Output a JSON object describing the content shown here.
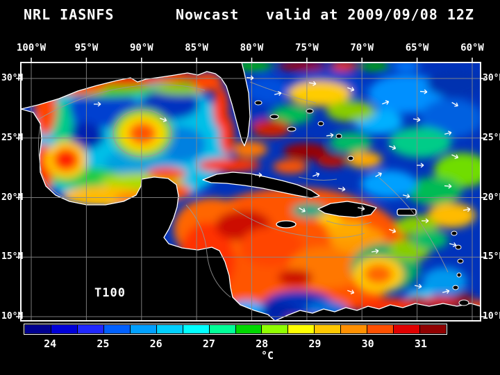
{
  "header": {
    "model": "NRL IASNFS",
    "product": "Nowcast",
    "valid_time": "valid at 2009/09/08 12Z"
  },
  "map": {
    "field_label": "T100",
    "lon_ticks": [
      "100°W",
      "95°W",
      "90°W",
      "85°W",
      "80°W",
      "75°W",
      "70°W",
      "65°W",
      "60°W"
    ],
    "lat_ticks_left": [
      "30°N",
      "25°N",
      "20°N",
      "15°N",
      "10°N"
    ],
    "lat_ticks_right": [
      "30°N",
      "25°N",
      "20°N",
      "15°N",
      "10°N"
    ]
  },
  "colorbar": {
    "unit_label": "°C",
    "tick_labels": [
      "24",
      "25",
      "26",
      "27",
      "28",
      "29",
      "30",
      "31"
    ],
    "segment_colors": [
      "#000090",
      "#0000d8",
      "#2028ff",
      "#0060ff",
      "#00a0ff",
      "#00d0ff",
      "#00ffff",
      "#00ff98",
      "#00d800",
      "#90ff00",
      "#ffff00",
      "#ffc800",
      "#ff9000",
      "#ff5000",
      "#e00000",
      "#900000"
    ]
  },
  "colors": {
    "background": "#000000",
    "coastline": "#ffffff",
    "grid": "#8a8a8a",
    "text": "#ffffff"
  }
}
